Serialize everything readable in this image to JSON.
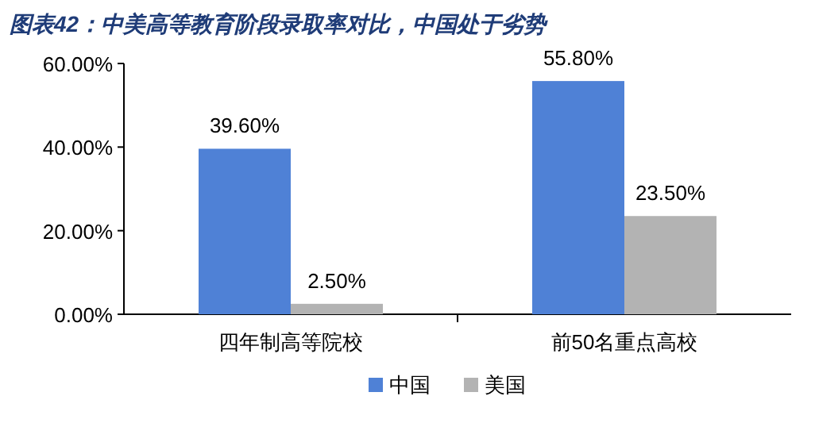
{
  "chart_data": {
    "type": "bar",
    "title": "图表42：中美高等教育阶段录取率对比，中国处于劣势",
    "categories": [
      "四年制高等院校",
      "前50名重点高校"
    ],
    "series": [
      {
        "name": "中国",
        "color": "#4f81d6",
        "values": [
          39.6,
          55.8
        ],
        "value_labels": [
          "39.60%",
          "55.80%"
        ]
      },
      {
        "name": "美国",
        "color": "#b3b3b3",
        "values": [
          2.5,
          23.5
        ],
        "value_labels": [
          "2.50%",
          "23.50%"
        ]
      }
    ],
    "ylim": [
      0,
      60
    ],
    "yticks": [
      {
        "value": 0,
        "label": "0.00%"
      },
      {
        "value": 20,
        "label": "20.00%"
      },
      {
        "value": 40,
        "label": "40.00%"
      },
      {
        "value": 60,
        "label": "60.00%"
      }
    ],
    "legend": "bottom"
  }
}
